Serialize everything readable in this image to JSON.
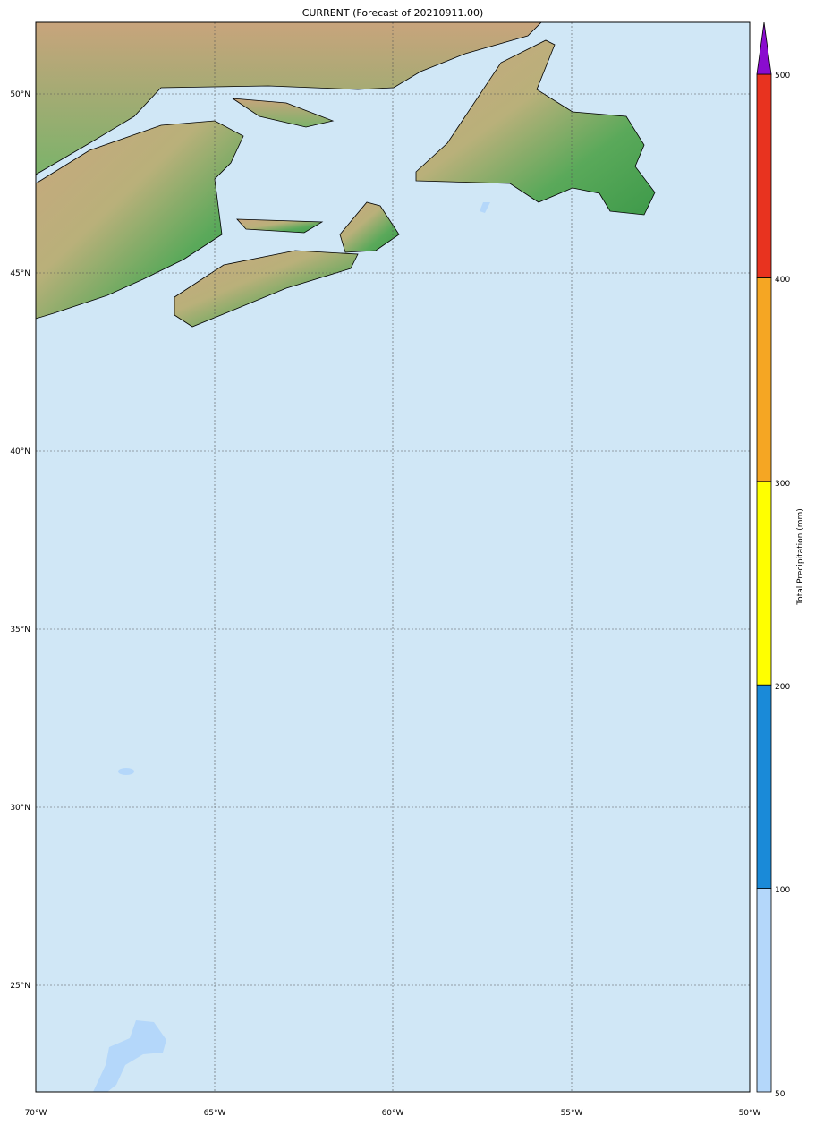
{
  "title": "CURRENT (Forecast of 20210911.00)",
  "map": {
    "projection": "cylindrical",
    "lon_range": [
      -70,
      -50
    ],
    "lat_range": [
      22,
      52
    ],
    "lon_ticks": [
      "70°W",
      "65°W",
      "60°W",
      "55°W",
      "50°W"
    ],
    "lat_ticks": [
      "50°N",
      "45°N",
      "40°N",
      "35°N",
      "30°N",
      "25°N"
    ],
    "ocean_color": "#d0e7f6",
    "gridlines": true
  },
  "colorbar": {
    "label": "Total Precipitation (mm)",
    "ticks": [
      "50",
      "100",
      "200",
      "300",
      "400",
      "500"
    ],
    "bins": [
      {
        "from": 50,
        "to": 100,
        "color": "#b4d7fa"
      },
      {
        "from": 100,
        "to": 200,
        "color": "#1a8ad8"
      },
      {
        "from": 200,
        "to": 300,
        "color": "#ffff00"
      },
      {
        "from": 300,
        "to": 400,
        "color": "#f5a623"
      },
      {
        "from": 400,
        "to": 500,
        "color": "#e8331f"
      }
    ],
    "extend_color": "#8a0ccf"
  }
}
